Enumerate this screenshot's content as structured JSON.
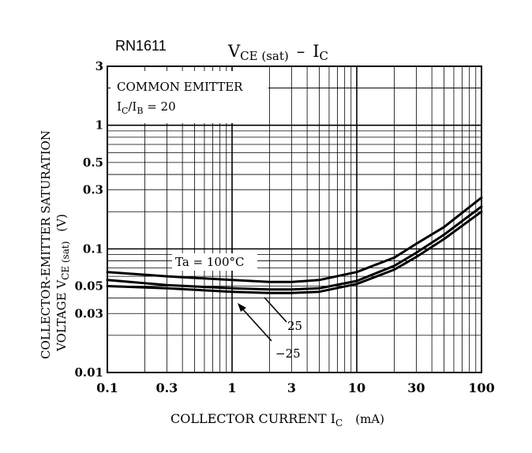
{
  "part_number": "RN1611",
  "title": {
    "main": "V",
    "main_sub": "CE (sat)",
    "dash": "–",
    "second": "I",
    "second_sub": "C"
  },
  "annotation": {
    "line1": "COMMON EMITTER",
    "line2_main": "I",
    "line2_sub1": "C",
    "line2_mid": "/I",
    "line2_sub2": "B",
    "line2_end": " = 20"
  },
  "xlabel": {
    "main": "COLLECTOR CURRENT   I",
    "sub": "C",
    "unit": "(mA)"
  },
  "ylabel": {
    "line1": "COLLECTOR-EMITTER SATURATION",
    "line2_main": "VOLTAGE   V",
    "line2_sub": "CE (sat)",
    "line2_unit": "(V)"
  },
  "chart_data": {
    "type": "line",
    "x_scale": "log",
    "y_scale": "log",
    "xlim": [
      0.1,
      100
    ],
    "ylim": [
      0.01,
      3
    ],
    "x_ticks": [
      0.1,
      0.3,
      1,
      3,
      10,
      30,
      100
    ],
    "x_tick_labels": [
      "0.1",
      "0.3",
      "1",
      "3",
      "10",
      "30",
      "100"
    ],
    "y_ticks": [
      0.01,
      0.03,
      0.05,
      0.1,
      0.3,
      0.5,
      1,
      3
    ],
    "y_tick_labels": [
      "0.01",
      "0.03",
      "0.05",
      "0.1",
      "0.3",
      "0.5",
      "1",
      "3"
    ],
    "grid": true,
    "series": [
      {
        "name": "Ta = 100°C",
        "x": [
          0.1,
          0.3,
          1,
          2,
          3,
          5,
          10,
          20,
          30,
          50,
          100
        ],
        "y": [
          0.065,
          0.06,
          0.056,
          0.054,
          0.054,
          0.056,
          0.065,
          0.085,
          0.11,
          0.15,
          0.26
        ]
      },
      {
        "name": "25",
        "x": [
          0.1,
          0.3,
          1,
          2,
          3,
          5,
          10,
          20,
          30,
          50,
          100
        ],
        "y": [
          0.056,
          0.051,
          0.048,
          0.047,
          0.047,
          0.048,
          0.055,
          0.073,
          0.093,
          0.13,
          0.22
        ]
      },
      {
        "name": "−25",
        "x": [
          0.1,
          0.3,
          1,
          2,
          3,
          5,
          10,
          20,
          30,
          50,
          100
        ],
        "y": [
          0.05,
          0.048,
          0.045,
          0.044,
          0.044,
          0.045,
          0.052,
          0.068,
          0.086,
          0.12,
          0.2
        ]
      }
    ]
  }
}
